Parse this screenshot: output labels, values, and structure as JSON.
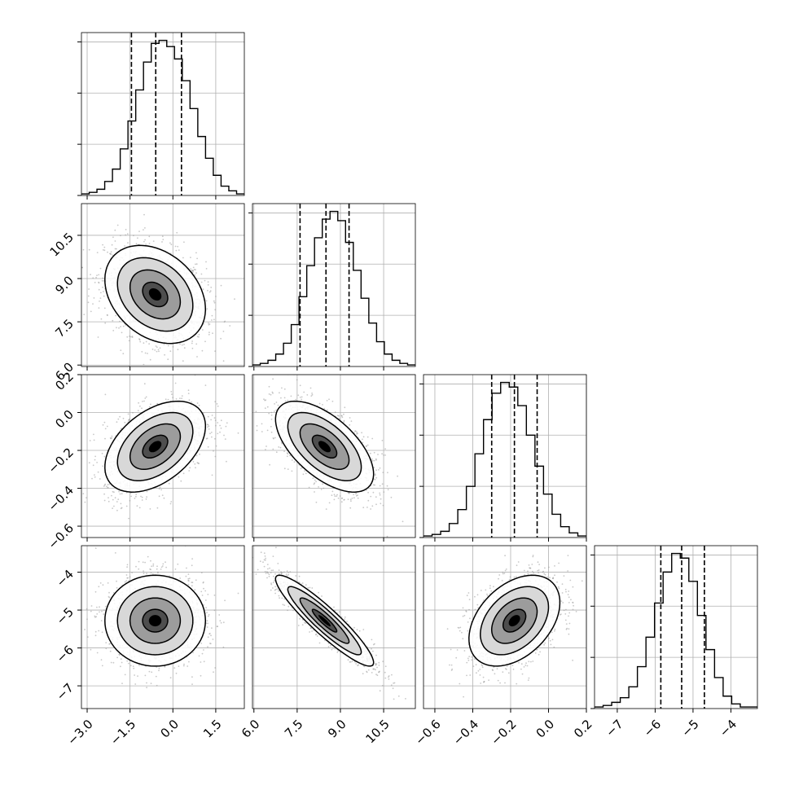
{
  "chart_data": {
    "type": "corner",
    "grid": true,
    "colors": {
      "line": "#000000",
      "scatter": "#9a9a9a",
      "grid": "#b0b0b0",
      "background": "#ffffff"
    },
    "parameters": [
      {
        "index": 0,
        "range": [
          -3.2,
          2.5
        ],
        "ticks": [
          -3.0,
          -1.5,
          0.0,
          1.5
        ],
        "tick_labels": [
          "−3.0",
          "−1.5",
          "0.0",
          "1.5"
        ],
        "quantiles": [
          -1.45,
          -0.6,
          0.3
        ],
        "mean": -0.62,
        "sd": 0.88
      },
      {
        "index": 1,
        "range": [
          5.95,
          11.6
        ],
        "ticks": [
          6.0,
          7.5,
          9.0,
          10.5
        ],
        "tick_labels": [
          "6.0",
          "7.5",
          "9.0",
          "10.5"
        ],
        "quantiles": [
          7.6,
          8.5,
          9.3
        ],
        "mean": 8.45,
        "sd": 0.85
      },
      {
        "index": 2,
        "range": [
          -0.66,
          0.2
        ],
        "ticks": [
          -0.6,
          -0.4,
          -0.2,
          0.0,
          0.2
        ],
        "tick_labels": [
          "−0.6",
          "−0.4",
          "−0.2",
          "0.0",
          "0.2"
        ],
        "quantiles": [
          -0.3,
          -0.18,
          -0.06
        ],
        "mean": -0.18,
        "sd": 0.12
      },
      {
        "index": 3,
        "range": [
          -7.6,
          -3.3
        ],
        "ticks": [
          -7,
          -6,
          -5,
          -4
        ],
        "tick_labels": [
          "−7",
          "−6",
          "−5",
          "−4"
        ],
        "quantiles": [
          -5.85,
          -5.3,
          -4.7
        ],
        "mean": -5.28,
        "sd": 0.6
      }
    ],
    "histograms": [
      {
        "param": 0,
        "bin_edges_range": [
          -3.2,
          2.5
        ],
        "counts": [
          1,
          2,
          4,
          9,
          17,
          30,
          48,
          68,
          86,
          98,
          100,
          96,
          88,
          74,
          56,
          38,
          24,
          13,
          6,
          3,
          1
        ]
      },
      {
        "param": 1,
        "bin_edges_range": [
          5.95,
          11.6
        ],
        "counts": [
          1,
          2,
          4,
          8,
          15,
          27,
          45,
          65,
          83,
          95,
          100,
          94,
          80,
          62,
          44,
          28,
          16,
          8,
          4,
          2,
          1
        ]
      },
      {
        "param": 2,
        "bin_edges_range": [
          -0.66,
          0.2
        ],
        "counts": [
          1,
          2,
          4,
          9,
          18,
          33,
          54,
          76,
          93,
          100,
          97,
          85,
          66,
          46,
          28,
          15,
          7,
          3,
          1
        ]
      },
      {
        "param": 3,
        "bin_edges_range": [
          -7.6,
          -3.3
        ],
        "counts": [
          1,
          2,
          4,
          7,
          14,
          27,
          46,
          68,
          88,
          100,
          97,
          82,
          60,
          38,
          20,
          8,
          3,
          1,
          1
        ]
      }
    ],
    "pairs": [
      {
        "x": 0,
        "y": 1,
        "center": [
          -0.62,
          8.45
        ],
        "correlation": -0.3
      },
      {
        "x": 0,
        "y": 2,
        "center": [
          -0.62,
          -0.18
        ],
        "correlation": 0.45
      },
      {
        "x": 1,
        "y": 2,
        "center": [
          8.45,
          -0.18
        ],
        "correlation": -0.6
      },
      {
        "x": 0,
        "y": 3,
        "center": [
          -0.62,
          -5.28
        ],
        "correlation": 0.0
      },
      {
        "x": 1,
        "y": 3,
        "center": [
          8.45,
          -5.28
        ],
        "correlation": -0.92
      },
      {
        "x": 2,
        "y": 3,
        "center": [
          -0.18,
          -5.28
        ],
        "correlation": 0.4
      }
    ],
    "contour_levels_sigma": [
      0.5,
      1.0,
      1.5,
      2.0
    ]
  }
}
